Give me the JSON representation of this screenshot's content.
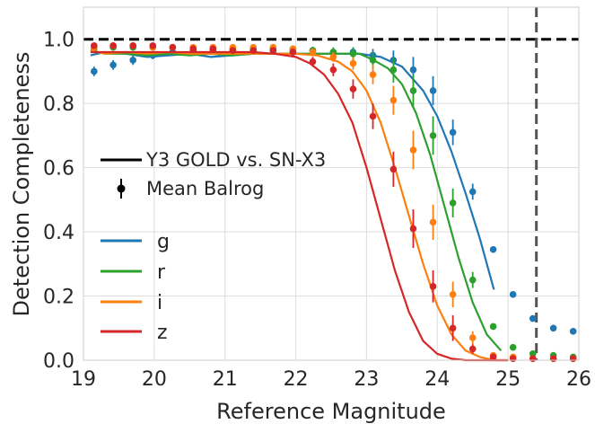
{
  "chart_data": {
    "type": "line",
    "xlabel": "Reference Magnitude",
    "ylabel": "Detection Completeness",
    "xlim": [
      19,
      26
    ],
    "ylim": [
      0,
      1.1
    ],
    "xticks": [
      "19",
      "20",
      "21",
      "22",
      "23",
      "24",
      "25",
      "26"
    ],
    "yticks": [
      "0.0",
      "0.2",
      "0.4",
      "0.6",
      "0.8",
      "1.0"
    ],
    "grid": true,
    "reference_line_y": 1.0,
    "limit_line_x": 25.4,
    "legend_style": {
      "line_label": "Y3 GOLD vs. SN-X3",
      "marker_label": "Mean Balrog"
    },
    "series": [
      {
        "name": "g",
        "color": "#1f77b4",
        "curve_x": [
          19.1,
          19.3,
          19.6,
          19.9,
          20.2,
          20.5,
          20.8,
          21.1,
          21.4,
          21.7,
          22.0,
          22.3,
          22.6,
          22.9,
          23.2,
          23.5,
          23.8,
          24.0,
          24.2,
          24.4,
          24.6,
          24.8
        ],
        "curve_y": [
          0.95,
          0.96,
          0.955,
          0.945,
          0.95,
          0.955,
          0.945,
          0.95,
          0.955,
          0.955,
          0.955,
          0.955,
          0.955,
          0.955,
          0.945,
          0.915,
          0.84,
          0.76,
          0.65,
          0.52,
          0.38,
          0.22
        ],
        "points_x": [
          19.15,
          19.42,
          19.7,
          19.98,
          20.26,
          20.55,
          20.83,
          21.11,
          21.4,
          21.68,
          21.96,
          22.24,
          22.53,
          22.81,
          23.09,
          23.38,
          23.66,
          23.94,
          24.22,
          24.5,
          24.79,
          25.07,
          25.35,
          25.64,
          25.92
        ],
        "points_y": [
          0.9,
          0.92,
          0.935,
          0.95,
          0.96,
          0.965,
          0.965,
          0.965,
          0.965,
          0.965,
          0.965,
          0.965,
          0.96,
          0.96,
          0.95,
          0.935,
          0.905,
          0.84,
          0.71,
          0.525,
          0.345,
          0.205,
          0.13,
          0.1,
          0.09
        ],
        "errors": [
          0.015,
          0.015,
          0.015,
          0.012,
          0.012,
          0.01,
          0.01,
          0.01,
          0.01,
          0.01,
          0.01,
          0.01,
          0.012,
          0.015,
          0.02,
          0.03,
          0.04,
          0.045,
          0.04,
          0.025,
          0.01,
          0.008,
          0.006,
          0.005,
          0.005
        ]
      },
      {
        "name": "r",
        "color": "#2ca02c",
        "curve_x": [
          19.1,
          19.3,
          19.6,
          19.9,
          20.2,
          20.5,
          20.8,
          21.1,
          21.4,
          21.7,
          22.0,
          22.3,
          22.6,
          22.9,
          23.1,
          23.3,
          23.5,
          23.7,
          23.9,
          24.1,
          24.3,
          24.5,
          24.7,
          24.9
        ],
        "curve_y": [
          0.965,
          0.955,
          0.955,
          0.95,
          0.955,
          0.95,
          0.955,
          0.95,
          0.955,
          0.955,
          0.955,
          0.955,
          0.955,
          0.955,
          0.935,
          0.91,
          0.86,
          0.77,
          0.64,
          0.48,
          0.32,
          0.18,
          0.08,
          0.03
        ],
        "points_x": [
          19.15,
          19.42,
          19.7,
          19.98,
          20.26,
          20.55,
          20.83,
          21.11,
          21.4,
          21.68,
          21.96,
          22.24,
          22.53,
          22.81,
          23.09,
          23.38,
          23.66,
          23.94,
          24.22,
          24.5,
          24.79,
          25.07,
          25.35,
          25.64,
          25.92
        ],
        "points_y": [
          0.97,
          0.975,
          0.975,
          0.975,
          0.975,
          0.97,
          0.97,
          0.97,
          0.97,
          0.97,
          0.97,
          0.965,
          0.96,
          0.955,
          0.935,
          0.905,
          0.84,
          0.7,
          0.49,
          0.25,
          0.105,
          0.04,
          0.02,
          0.015,
          0.01
        ],
        "errors": [
          0.01,
          0.01,
          0.01,
          0.01,
          0.01,
          0.01,
          0.01,
          0.01,
          0.01,
          0.01,
          0.01,
          0.012,
          0.015,
          0.02,
          0.025,
          0.04,
          0.05,
          0.06,
          0.045,
          0.025,
          0.01,
          0.008,
          0.005,
          0.005,
          0.005
        ]
      },
      {
        "name": "i",
        "color": "#ff7f0e",
        "curve_x": [
          19.1,
          19.3,
          19.6,
          19.9,
          20.2,
          20.5,
          20.8,
          21.1,
          21.4,
          21.7,
          22.0,
          22.3,
          22.6,
          22.8,
          23.0,
          23.2,
          23.4,
          23.6,
          23.8,
          24.0,
          24.2,
          24.4,
          24.6,
          24.8,
          25.0
        ],
        "curve_y": [
          0.965,
          0.955,
          0.96,
          0.955,
          0.96,
          0.955,
          0.955,
          0.955,
          0.955,
          0.955,
          0.955,
          0.95,
          0.93,
          0.9,
          0.84,
          0.74,
          0.6,
          0.45,
          0.3,
          0.17,
          0.08,
          0.03,
          0.01,
          0.0,
          0.0
        ],
        "points_x": [
          19.15,
          19.42,
          19.7,
          19.98,
          20.26,
          20.55,
          20.83,
          21.11,
          21.4,
          21.68,
          21.96,
          22.24,
          22.53,
          22.81,
          23.09,
          23.38,
          23.66,
          23.94,
          24.22,
          24.5,
          24.79,
          25.07,
          25.35,
          25.64,
          25.92
        ],
        "points_y": [
          0.975,
          0.98,
          0.98,
          0.975,
          0.975,
          0.975,
          0.975,
          0.975,
          0.975,
          0.975,
          0.97,
          0.96,
          0.945,
          0.925,
          0.89,
          0.81,
          0.655,
          0.43,
          0.205,
          0.07,
          0.015,
          0.01,
          0.005,
          0.005,
          0.005
        ],
        "errors": [
          0.01,
          0.01,
          0.01,
          0.01,
          0.01,
          0.01,
          0.01,
          0.01,
          0.01,
          0.01,
          0.01,
          0.012,
          0.015,
          0.02,
          0.03,
          0.045,
          0.06,
          0.055,
          0.04,
          0.02,
          0.008,
          0.005,
          0.005,
          0.005,
          0.005
        ]
      },
      {
        "name": "z",
        "color": "#d62728",
        "curve_x": [
          19.1,
          19.3,
          19.6,
          19.9,
          20.2,
          20.5,
          20.8,
          21.1,
          21.4,
          21.7,
          22.0,
          22.2,
          22.4,
          22.6,
          22.8,
          23.0,
          23.2,
          23.4,
          23.6,
          23.8,
          24.0,
          24.2,
          24.4,
          24.6,
          24.8,
          25.0
        ],
        "curve_y": [
          0.96,
          0.96,
          0.96,
          0.96,
          0.96,
          0.96,
          0.96,
          0.96,
          0.96,
          0.955,
          0.945,
          0.925,
          0.89,
          0.83,
          0.74,
          0.6,
          0.44,
          0.28,
          0.15,
          0.06,
          0.02,
          0.005,
          0.0,
          0.0,
          0.0,
          0.0
        ],
        "points_x": [
          19.15,
          19.42,
          19.7,
          19.98,
          20.26,
          20.55,
          20.83,
          21.11,
          21.4,
          21.68,
          21.96,
          22.24,
          22.53,
          22.81,
          23.09,
          23.38,
          23.66,
          23.94,
          24.22,
          24.5,
          24.79,
          25.07,
          25.35,
          25.64,
          25.92
        ],
        "points_y": [
          0.98,
          0.98,
          0.98,
          0.98,
          0.975,
          0.97,
          0.97,
          0.965,
          0.965,
          0.965,
          0.96,
          0.93,
          0.905,
          0.845,
          0.76,
          0.595,
          0.41,
          0.23,
          0.1,
          0.035,
          0.01,
          0.005,
          0.005,
          0.005,
          0.005
        ],
        "errors": [
          0.01,
          0.01,
          0.01,
          0.01,
          0.01,
          0.01,
          0.01,
          0.01,
          0.01,
          0.01,
          0.012,
          0.015,
          0.02,
          0.03,
          0.04,
          0.055,
          0.06,
          0.05,
          0.04,
          0.015,
          0.006,
          0.005,
          0.005,
          0.005,
          0.005
        ]
      }
    ]
  }
}
